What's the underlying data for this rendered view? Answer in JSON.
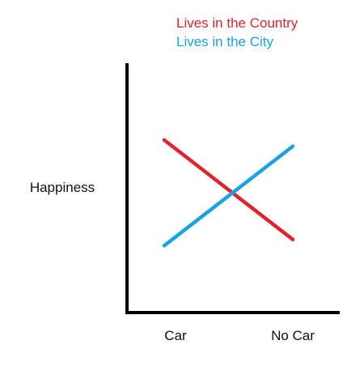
{
  "chart_data": {
    "type": "line",
    "title": "",
    "ylabel": "Happiness",
    "xlabel": "",
    "categories": [
      "Car",
      "No Car"
    ],
    "ylim": [
      0,
      10
    ],
    "grid": false,
    "legend_position": "top-right",
    "series": [
      {
        "name": "Lives in the Country",
        "color": "#e0242e",
        "values": [
          8.6,
          2.2
        ]
      },
      {
        "name": "Lives in the City",
        "color": "#1aa3e0",
        "values": [
          1.8,
          8.2
        ]
      }
    ]
  }
}
